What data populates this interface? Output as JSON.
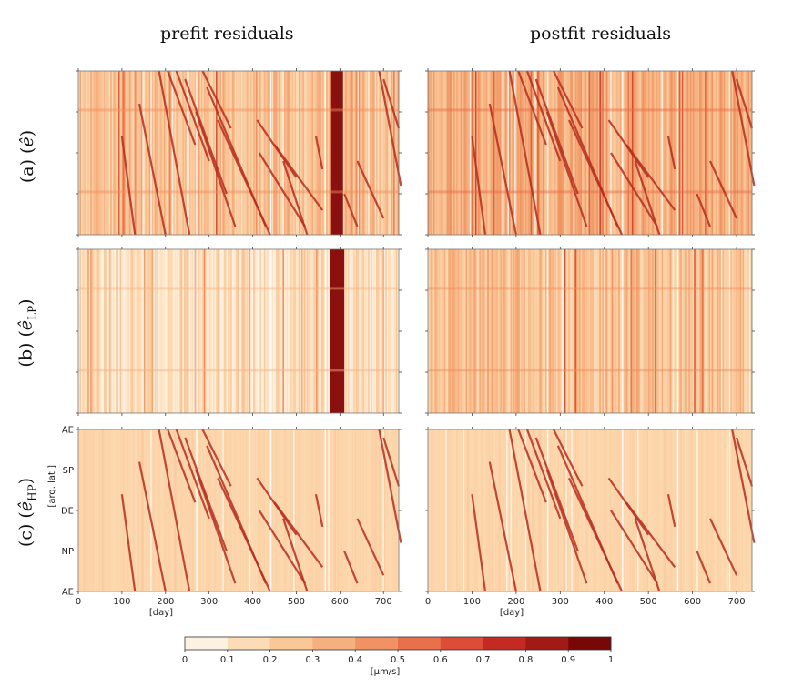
{
  "titles": {
    "prefit": "prefit residuals",
    "postfit": "postfit residuals"
  },
  "rows": [
    {
      "prefix": "(a) (",
      "symbol": "ê",
      "sub": "",
      "suffix": ")"
    },
    {
      "prefix": "(b) (",
      "symbol": "ê",
      "sub": "LP",
      "suffix": ")"
    },
    {
      "prefix": "(c) (",
      "symbol": "ê",
      "sub": "HP",
      "suffix": ")"
    }
  ],
  "chart_data": {
    "type": "heatmap",
    "x_ticks": [
      0,
      100,
      200,
      300,
      400,
      500,
      600,
      700
    ],
    "xlim": [
      0,
      735
    ],
    "xlabel": "[day]",
    "ylabel": "[arg. lat.]",
    "y_ticks": [
      "AE",
      "SP",
      "DE",
      "NP",
      "AE"
    ],
    "colorbar": {
      "ticks": [
        "0",
        "0.1",
        "0.2",
        "0.3",
        "0.4",
        "0.5",
        "0.6",
        "0.7",
        "0.8",
        "0.9",
        "1"
      ],
      "label": "[μm/s]",
      "colors": [
        "#fdf2e2",
        "#fbdcb6",
        "#f9c896",
        "#f5b07f",
        "#f19264",
        "#e9704c",
        "#dc4c36",
        "#c52a22",
        "#a11a16",
        "#780808"
      ]
    },
    "panels": [
      {
        "row": 0,
        "col": 0,
        "base": 0.32,
        "stripe_strength": 0.36,
        "dark_days": [
          580,
          585,
          590,
          595,
          600
        ],
        "tracks": true
      },
      {
        "row": 0,
        "col": 1,
        "base": 0.42,
        "stripe_strength": 0.3,
        "dark_days": [],
        "tracks": true
      },
      {
        "row": 1,
        "col": 0,
        "base": 0.16,
        "stripe_strength": 0.34,
        "dark_days": [
          578,
          583,
          588,
          593,
          598,
          603
        ],
        "tracks": false
      },
      {
        "row": 1,
        "col": 1,
        "base": 0.33,
        "stripe_strength": 0.33,
        "dark_days": [],
        "tracks": false
      },
      {
        "row": 2,
        "col": 0,
        "base": 0.22,
        "stripe_strength": 0.05,
        "dark_days": [],
        "tracks": true
      },
      {
        "row": 2,
        "col": 1,
        "base": 0.22,
        "stripe_strength": 0.05,
        "dark_days": [],
        "tracks": true
      }
    ]
  }
}
